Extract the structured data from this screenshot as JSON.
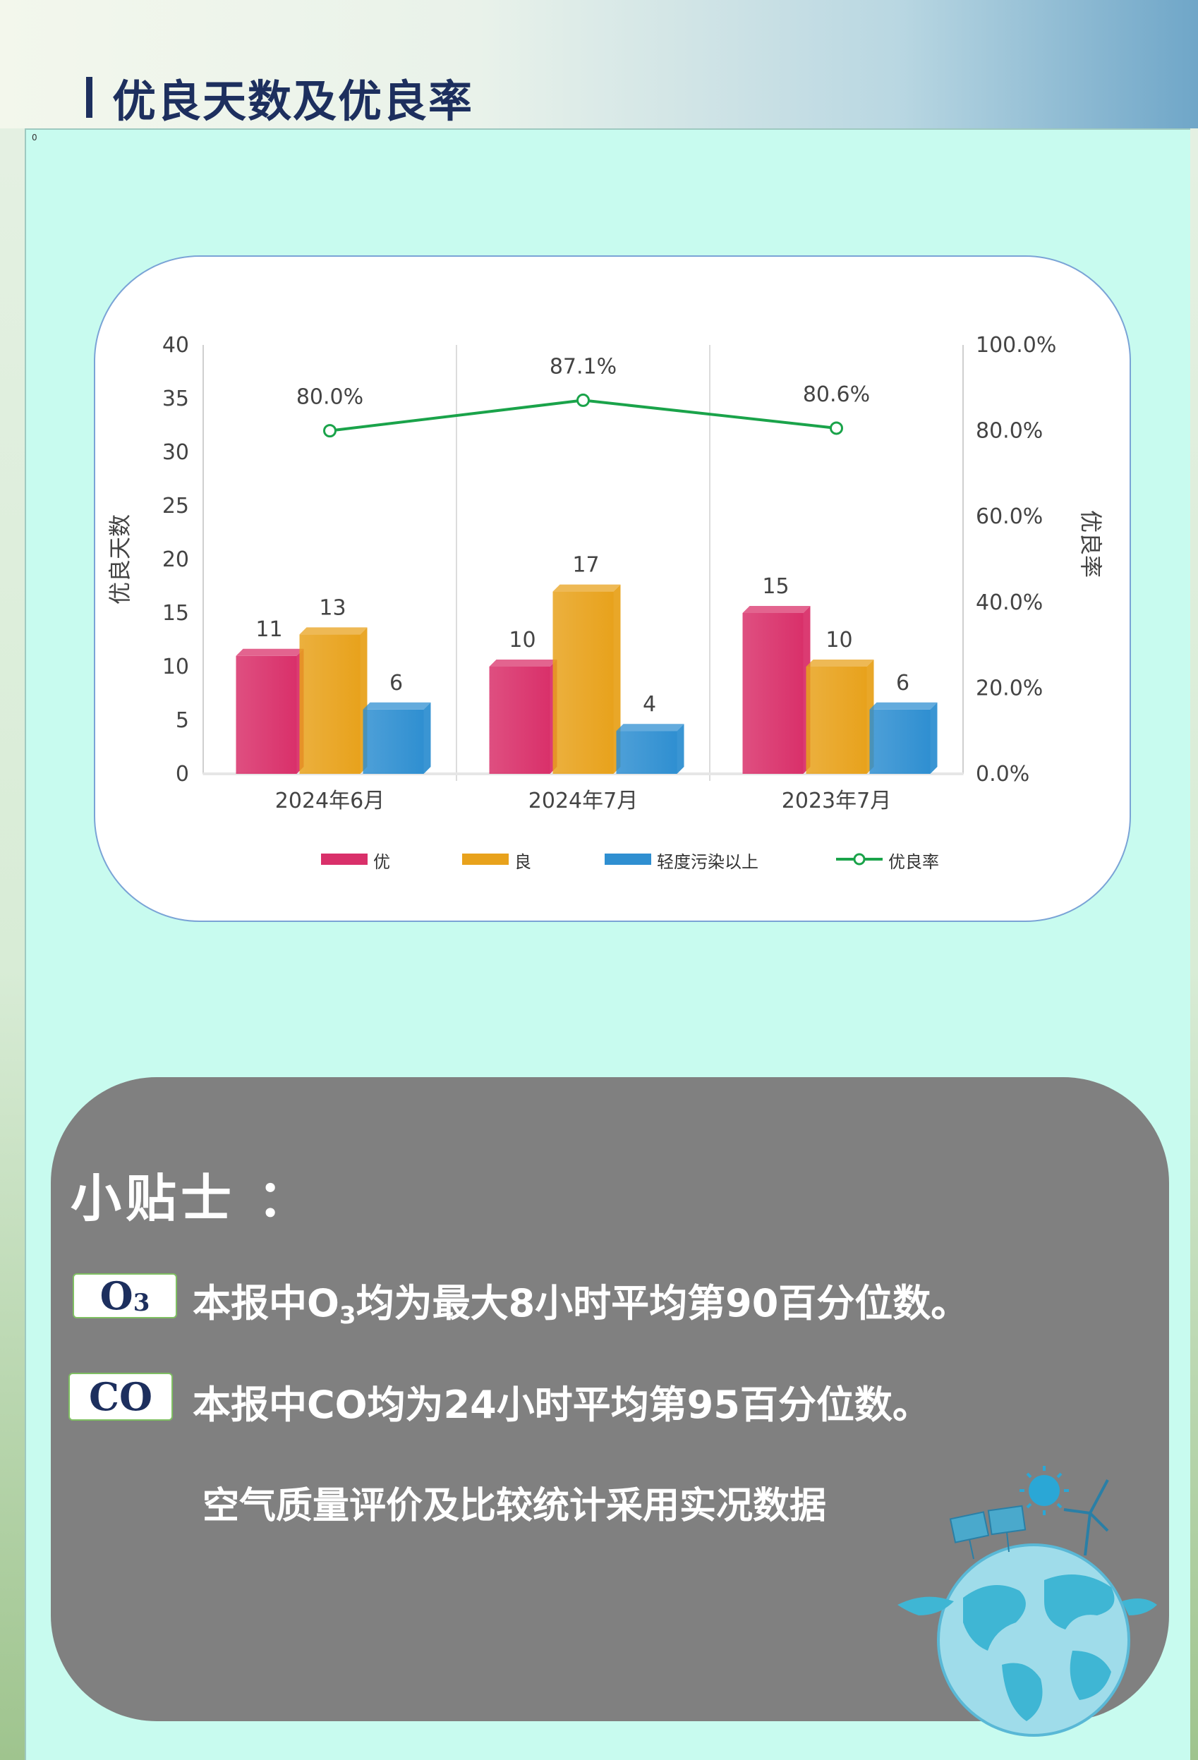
{
  "header": {
    "title": "优良天数及优良率"
  },
  "panel": {
    "corner_label": "0"
  },
  "chart_data": {
    "type": "bar",
    "categories": [
      "2024年6月",
      "2024年7月",
      "2023年7月"
    ],
    "series": [
      {
        "name": "优",
        "values": [
          11,
          10,
          15
        ],
        "color": "#d9306a"
      },
      {
        "name": "良",
        "values": [
          13,
          17,
          10
        ],
        "color": "#e8a21c"
      },
      {
        "name": "轻度污染以上",
        "values": [
          6,
          4,
          6
        ],
        "color": "#2f8fd1"
      }
    ],
    "line_series": {
      "name": "优良率",
      "values": [
        80.0,
        87.1,
        80.6
      ],
      "labels": [
        "80.0%",
        "87.1%",
        "80.6%"
      ],
      "color": "#1aa34a"
    },
    "ylabel": "优良天数",
    "y2label": "优良率",
    "ylim": [
      0,
      40
    ],
    "y2lim": [
      0,
      100
    ],
    "yticks": [
      "0",
      "5",
      "10",
      "15",
      "20",
      "25",
      "30",
      "35",
      "40"
    ],
    "y2ticks": [
      "0.0%",
      "20.0%",
      "40.0%",
      "60.0%",
      "80.0%",
      "100.0%"
    ],
    "grid": false,
    "legend": "bottom"
  },
  "tips": {
    "title": "小贴士 ：",
    "o3_badge": {
      "main": "O",
      "sub": "3"
    },
    "o3_text": {
      "pre": "本报中O",
      "sub": "3",
      "post": "均为最大8小时平均第90百分位数。"
    },
    "co_badge": "CO",
    "co_text": "本报中CO均为24小时平均第95百分位数。",
    "note": "空气质量评价及比较统计采用实况数据"
  }
}
